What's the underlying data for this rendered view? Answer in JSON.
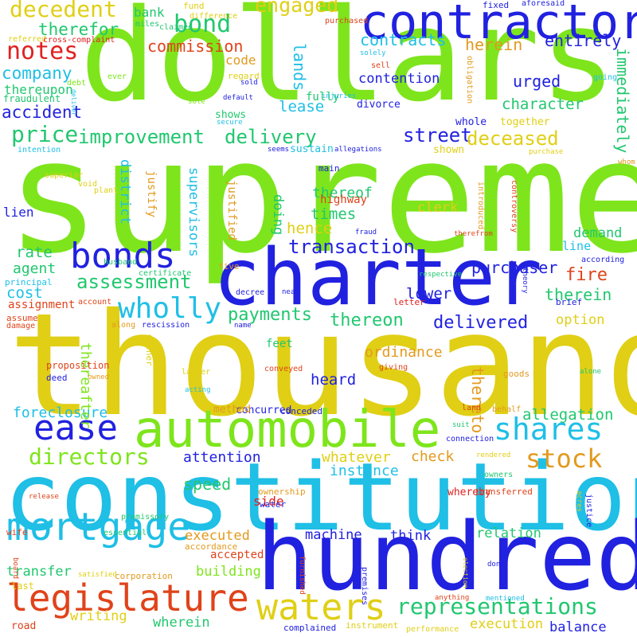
{
  "words": [
    {
      "text": "supreme",
      "color": "#7ee51c"
    },
    {
      "text": "dollars",
      "color": "#7ee51c"
    },
    {
      "text": "thousand",
      "color": "#e0cf15"
    },
    {
      "text": "constitution",
      "color": "#1fbfe6"
    },
    {
      "text": "charter",
      "color": "#2121e0"
    },
    {
      "text": "hundred",
      "color": "#2121e0"
    },
    {
      "text": "contractor",
      "color": "#2121e0"
    },
    {
      "text": "automobile",
      "color": "#7ee51c"
    },
    {
      "text": "mortgage",
      "color": "#1fbfe6"
    },
    {
      "text": "legislature",
      "color": "#e0431a"
    },
    {
      "text": "waters",
      "color": "#e0cf15"
    },
    {
      "text": "bonds",
      "color": "#2121e0"
    },
    {
      "text": "ease",
      "color": "#2121e0"
    },
    {
      "text": "shares",
      "color": "#1fbfe6"
    },
    {
      "text": "representations",
      "color": "#21c76f"
    },
    {
      "text": "stock",
      "color": "#e29a1d"
    },
    {
      "text": "directors",
      "color": "#7ee51c"
    },
    {
      "text": "notes",
      "color": "#e02121"
    },
    {
      "text": "decedent",
      "color": "#e0cf15"
    },
    {
      "text": "engaged",
      "color": "#e0cf15"
    },
    {
      "text": "bond",
      "color": "#21c76f"
    },
    {
      "text": "assessment",
      "color": "#21c76f"
    },
    {
      "text": "wholly",
      "color": "#1fbfe6"
    },
    {
      "text": "transaction",
      "color": "#2121e0"
    },
    {
      "text": "price",
      "color": "#21c76f"
    },
    {
      "text": "improvement",
      "color": "#21c76f"
    },
    {
      "text": "delivery",
      "color": "#21c76f"
    },
    {
      "text": "street",
      "color": "#2121e0"
    },
    {
      "text": "deceased",
      "color": "#e0cf15"
    },
    {
      "text": "therefor",
      "color": "#21c76f"
    },
    {
      "text": "commission",
      "color": "#e0431a"
    },
    {
      "text": "contracts",
      "color": "#1fbfe6"
    },
    {
      "text": "herein",
      "color": "#e29a1d"
    },
    {
      "text": "entirely",
      "color": "#2121e0"
    },
    {
      "text": "company",
      "color": "#1fbfe6"
    },
    {
      "text": "accident",
      "color": "#2121e0"
    },
    {
      "text": "lease",
      "color": "#1fbfe6"
    },
    {
      "text": "character",
      "color": "#21c76f"
    },
    {
      "text": "urged",
      "color": "#2121e0"
    },
    {
      "text": "immediately",
      "color": "#21c76f"
    },
    {
      "text": "lands",
      "color": "#1fbfe6"
    },
    {
      "text": "contention",
      "color": "#2121e0"
    },
    {
      "text": "thereupon",
      "color": "#21c76f"
    },
    {
      "text": "code",
      "color": "#e29a1d"
    },
    {
      "text": "payments",
      "color": "#21c76f"
    },
    {
      "text": "thereon",
      "color": "#21c76f"
    },
    {
      "text": "delivered",
      "color": "#2121e0"
    },
    {
      "text": "purchaser",
      "color": "#2121e0"
    },
    {
      "text": "supervisors",
      "color": "#1fbfe6"
    },
    {
      "text": "district",
      "color": "#1fbfe6"
    },
    {
      "text": "fire",
      "color": "#e0431a"
    },
    {
      "text": "therein",
      "color": "#21c76f"
    },
    {
      "text": "lower",
      "color": "#2121e0"
    },
    {
      "text": "demand",
      "color": "#21c76f"
    },
    {
      "text": "thereof",
      "color": "#21c76f"
    },
    {
      "text": "times",
      "color": "#21c76f"
    },
    {
      "text": "clerk",
      "color": "#e0cf15"
    },
    {
      "text": "hence",
      "color": "#e0cf15"
    },
    {
      "text": "rate",
      "color": "#21c76f"
    },
    {
      "text": "agent",
      "color": "#21c76f"
    },
    {
      "text": "cost",
      "color": "#1fbfe6"
    },
    {
      "text": "assignment",
      "color": "#e0431a"
    },
    {
      "text": "foreclosure",
      "color": "#1fbfe6"
    },
    {
      "text": "allegation",
      "color": "#21c76f"
    },
    {
      "text": "heard",
      "color": "#2121e0"
    },
    {
      "text": "ordinance",
      "color": "#e29a1d"
    },
    {
      "text": "thereto",
      "color": "#e29a1d"
    },
    {
      "text": "thereafter",
      "color": "#7ee51c"
    },
    {
      "text": "attention",
      "color": "#2121e0"
    },
    {
      "text": "whatever",
      "color": "#e0cf15"
    },
    {
      "text": "check",
      "color": "#e29a1d"
    },
    {
      "text": "instance",
      "color": "#1fbfe6"
    },
    {
      "text": "speed",
      "color": "#21c76f"
    },
    {
      "text": "executed",
      "color": "#e29a1d"
    },
    {
      "text": "machine",
      "color": "#2121e0"
    },
    {
      "text": "think",
      "color": "#2121e0"
    },
    {
      "text": "relation",
      "color": "#21c76f"
    },
    {
      "text": "building",
      "color": "#7ee51c"
    },
    {
      "text": "transfer",
      "color": "#21c76f"
    },
    {
      "text": "wherein",
      "color": "#21c76f"
    },
    {
      "text": "writing",
      "color": "#e0cf15"
    },
    {
      "text": "execution",
      "color": "#e0cf15"
    },
    {
      "text": "balance",
      "color": "#2121e0"
    },
    {
      "text": "option",
      "color": "#e0cf15"
    },
    {
      "text": "feet",
      "color": "#21c76f"
    },
    {
      "text": "lien",
      "color": "#2121e0"
    },
    {
      "text": "doing",
      "color": "#21c76f"
    },
    {
      "text": "line",
      "color": "#1fbfe6"
    },
    {
      "text": "justify",
      "color": "#e29a1d"
    },
    {
      "text": "justified",
      "color": "#e29a1d"
    },
    {
      "text": "highway",
      "color": "#e0431a"
    },
    {
      "text": "accepted",
      "color": "#e0431a"
    },
    {
      "text": "fully",
      "color": "#21c76f"
    },
    {
      "text": "shows",
      "color": "#21c76f"
    },
    {
      "text": "divorce",
      "color": "#2121e0"
    },
    {
      "text": "sustain",
      "color": "#1fbfe6"
    },
    {
      "text": "shown",
      "color": "#e0cf15"
    },
    {
      "text": "together",
      "color": "#e0cf15"
    },
    {
      "text": "whole",
      "color": "#2121e0"
    },
    {
      "text": "fraudulent",
      "color": "#21c76f"
    },
    {
      "text": "concurred",
      "color": "#2121e0"
    },
    {
      "text": "method",
      "color": "#e29a1d"
    },
    {
      "text": "conceded",
      "color": "#2121e0"
    },
    {
      "text": "side",
      "color": "#e02121"
    },
    {
      "text": "ownership",
      "color": "#e29a1d"
    },
    {
      "text": "water",
      "color": "#2121e0"
    },
    {
      "text": "whereby",
      "color": "#e02121"
    },
    {
      "text": "bank",
      "color": "#21c76f"
    },
    {
      "text": "fund",
      "color": "#e0cf15"
    },
    {
      "text": "purchased",
      "color": "#e0431a"
    },
    {
      "text": "sell",
      "color": "#e0431a"
    },
    {
      "text": "regard",
      "color": "#e0cf15"
    },
    {
      "text": "sold",
      "color": "#2121e0"
    },
    {
      "text": "injuries",
      "color": "#1fbfe6"
    },
    {
      "text": "solely",
      "color": "#1fbfe6"
    },
    {
      "text": "obligation",
      "color": "#e29a1d"
    },
    {
      "text": "fixed",
      "color": "#2121e0"
    },
    {
      "text": "aforesaid",
      "color": "#2121e0"
    },
    {
      "text": "going",
      "color": "#1fbfe6"
    },
    {
      "text": "whom",
      "color": "#e29a1d"
    },
    {
      "text": "purchase",
      "color": "#e0cf15"
    },
    {
      "text": "miles",
      "color": "#21c76f"
    },
    {
      "text": "claimed",
      "color": "#21c76f"
    },
    {
      "text": "difference",
      "color": "#e0cf15"
    },
    {
      "text": "referred",
      "color": "#e0cf15"
    },
    {
      "text": "cross-complaint",
      "color": "#e02121"
    },
    {
      "text": "debt",
      "color": "#7ee51c"
    },
    {
      "text": "ever",
      "color": "#7ee51c"
    },
    {
      "text": "deliver",
      "color": "#1fbfe6"
    },
    {
      "text": "sole",
      "color": "#7ee51c"
    },
    {
      "text": "default",
      "color": "#2121e0"
    },
    {
      "text": "secure",
      "color": "#1fbfe6"
    },
    {
      "text": "intention",
      "color": "#1fbfe6"
    },
    {
      "text": "seems",
      "color": "#2121e0"
    },
    {
      "text": "allegations",
      "color": "#2121e0"
    },
    {
      "text": "main",
      "color": "#2121e0"
    },
    {
      "text": "superior",
      "color": "#e0cf15"
    },
    {
      "text": "void",
      "color": "#e0cf15"
    },
    {
      "text": "plant",
      "color": "#e0cf15"
    },
    {
      "text": "introduced",
      "color": "#e29a1d"
    },
    {
      "text": "controversy",
      "color": "#e0431a"
    },
    {
      "text": "fraud",
      "color": "#2121e0"
    },
    {
      "text": "therefrom",
      "color": "#e0431a"
    },
    {
      "text": "according",
      "color": "#2121e0"
    },
    {
      "text": "husband",
      "color": "#21c76f"
    },
    {
      "text": "certificate",
      "color": "#21c76f"
    },
    {
      "text": "principal",
      "color": "#1fbfe6"
    },
    {
      "text": "five",
      "color": "#e29a1d"
    },
    {
      "text": "decree",
      "color": "#2121e0"
    },
    {
      "text": "near",
      "color": "#2121e0"
    },
    {
      "text": "respective",
      "color": "#21c76f"
    },
    {
      "text": "theory",
      "color": "#2121e0"
    },
    {
      "text": "letter",
      "color": "#e02121"
    },
    {
      "text": "brief",
      "color": "#2121e0"
    },
    {
      "text": "assume",
      "color": "#e0431a"
    },
    {
      "text": "account",
      "color": "#e0431a"
    },
    {
      "text": "damage",
      "color": "#e0431a"
    },
    {
      "text": "along",
      "color": "#e29a1d"
    },
    {
      "text": "name",
      "color": "#2121e0"
    },
    {
      "text": "rescission",
      "color": "#2121e0"
    },
    {
      "text": "proposition",
      "color": "#e0431a"
    },
    {
      "text": "deed",
      "color": "#2121e0"
    },
    {
      "text": "mother",
      "color": "#e0cf15"
    },
    {
      "text": "latter",
      "color": "#e0cf15"
    },
    {
      "text": "acting",
      "color": "#1fbfe6"
    },
    {
      "text": "conveyed",
      "color": "#e0431a"
    },
    {
      "text": "giving",
      "color": "#e0431a"
    },
    {
      "text": "owned",
      "color": "#e29a1d"
    },
    {
      "text": "goods",
      "color": "#e29a1d"
    },
    {
      "text": "alone",
      "color": "#21c76f"
    },
    {
      "text": "land",
      "color": "#e0431a"
    },
    {
      "text": "behalf",
      "color": "#e29a1d"
    },
    {
      "text": "suit",
      "color": "#21c76f"
    },
    {
      "text": "connection",
      "color": "#2121e0"
    },
    {
      "text": "rendered",
      "color": "#e0cf15"
    },
    {
      "text": "owners",
      "color": "#21c76f"
    },
    {
      "text": "board",
      "color": "#e0431a"
    },
    {
      "text": "release",
      "color": "#e0431a"
    },
    {
      "text": "transferred",
      "color": "#e0431a"
    },
    {
      "text": "justice",
      "color": "#2121e0"
    },
    {
      "text": "acres",
      "color": "#e0cf15"
    },
    {
      "text": "promissory",
      "color": "#21c76f"
    },
    {
      "text": "wife",
      "color": "#e0431a"
    },
    {
      "text": "essential",
      "color": "#21c76f"
    },
    {
      "text": "accordance",
      "color": "#e29a1d"
    },
    {
      "text": "corporation",
      "color": "#e29a1d"
    },
    {
      "text": "satisfied",
      "color": "#e0cf15"
    },
    {
      "text": "last",
      "color": "#e0cf15"
    },
    {
      "text": "furnished",
      "color": "#e0431a"
    },
    {
      "text": "premises",
      "color": "#2121e0"
    },
    {
      "text": "election",
      "color": "#e0cf15"
    },
    {
      "text": "done",
      "color": "#2121e0"
    },
    {
      "text": "anything",
      "color": "#e0431a"
    },
    {
      "text": "mentioned",
      "color": "#1fbfe6"
    },
    {
      "text": "road",
      "color": "#e0431a"
    },
    {
      "text": "complained",
      "color": "#2121e0"
    },
    {
      "text": "instrument",
      "color": "#e0cf15"
    },
    {
      "text": "performance",
      "color": "#e0cf15"
    },
    {
      "text": "nevertheless",
      "color": "#2121e0"
    }
  ]
}
